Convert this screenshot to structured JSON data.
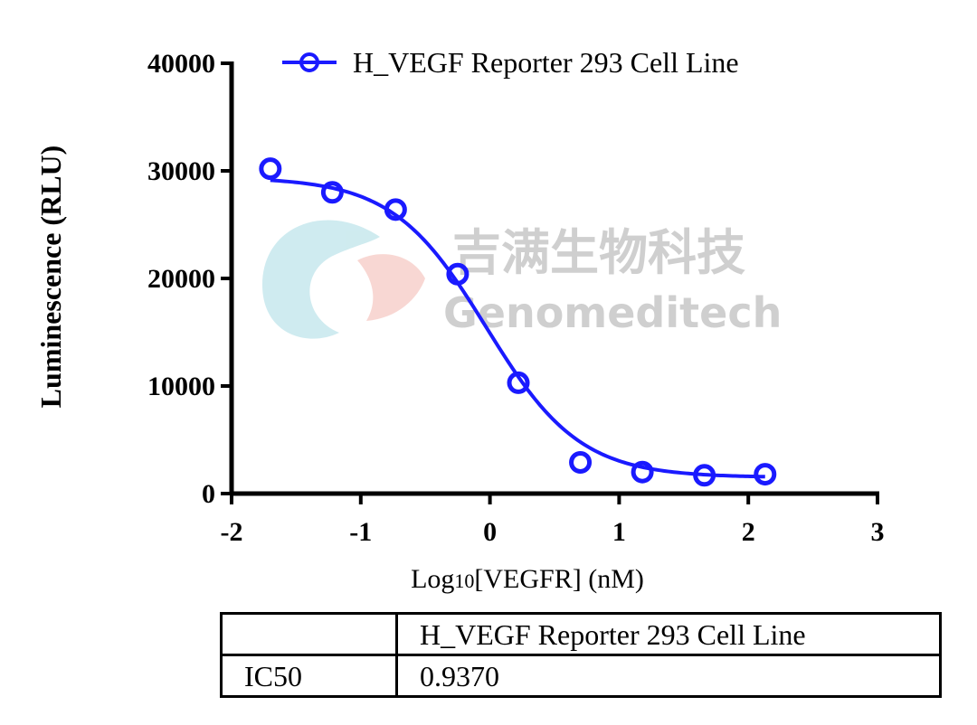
{
  "chart_data": {
    "type": "scatter",
    "xlabel": "Log10[VEGFR] (nM)",
    "xlabel_parts": {
      "prefix": "Log",
      "subscript": "10",
      "suffix": "[VEGFR] (nM)"
    },
    "ylabel": "Luminescence (RLU)",
    "xlim": [
      -2,
      3
    ],
    "ylim": [
      0,
      40000
    ],
    "x_ticks": [
      -2,
      -1,
      0,
      1,
      2,
      3
    ],
    "y_ticks": [
      0,
      10000,
      20000,
      30000,
      40000
    ],
    "x_tick_labels": [
      "-2",
      "-1",
      "0",
      "1",
      "2",
      "3"
    ],
    "y_tick_labels": [
      "0",
      "10000",
      "20000",
      "30000",
      "40000"
    ],
    "grid": false,
    "legend_position": "top",
    "series": [
      {
        "name": "H_VEGF Reporter 293 Cell Line",
        "color": "#1a1aff",
        "marker": "open-circle",
        "x": [
          -1.7,
          -1.22,
          -0.73,
          -0.25,
          0.22,
          0.7,
          1.18,
          1.66,
          2.13
        ],
        "y": [
          30200,
          28000,
          26400,
          20400,
          10300,
          2900,
          2000,
          1700,
          1800
        ],
        "fit": {
          "model": "4PL",
          "top": 29400,
          "bottom": 1500,
          "log_ic50": -0.028,
          "hill_slope": -1.2
        }
      }
    ]
  },
  "watermark": {
    "chinese": "吉满生物科技",
    "english": "Genomeditech"
  },
  "table": {
    "header": [
      "",
      "H_VEGF Reporter 293 Cell Line"
    ],
    "rows": [
      [
        "IC50",
        "0.9370"
      ]
    ]
  }
}
